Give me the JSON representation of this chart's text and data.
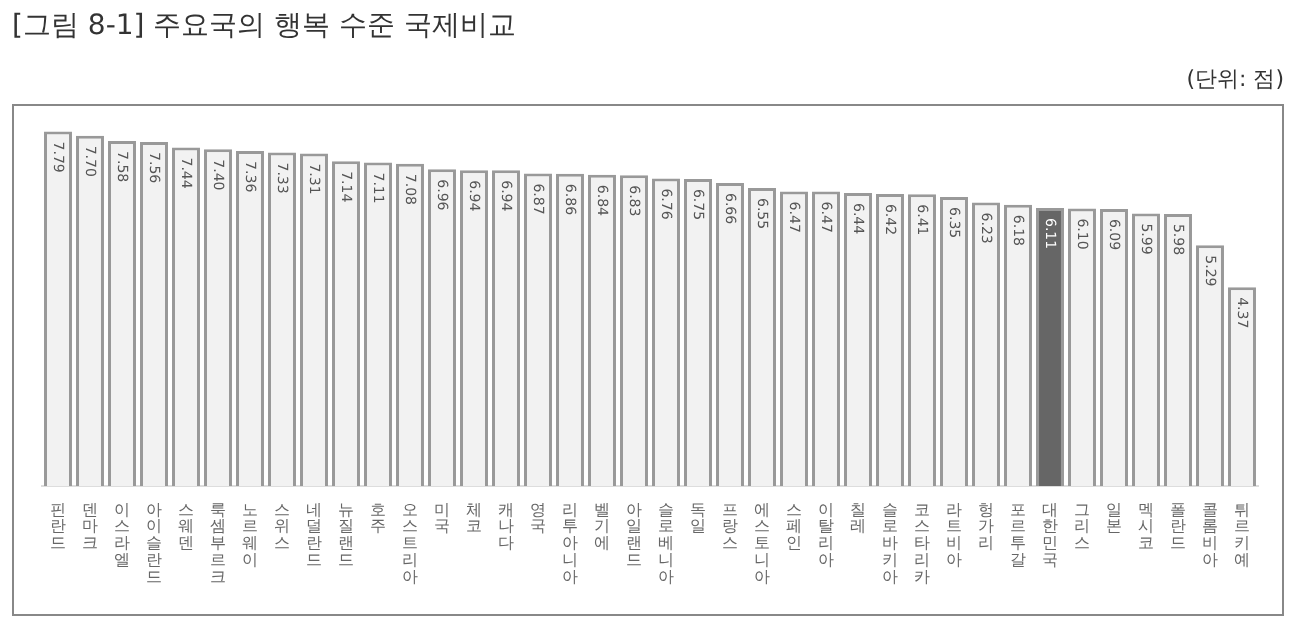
{
  "chart_data": {
    "type": "bar",
    "title": "[그림 8-1] 주요국의 행복 수준 국제비교",
    "annotations": [
      "(단위: 점)"
    ],
    "categories": [
      "핀란드",
      "덴마크",
      "이스라엘",
      "아이슬란드",
      "스웨덴",
      "룩셈부르크",
      "노르웨이",
      "스위스",
      "네덜란드",
      "뉴질랜드",
      "호주",
      "오스트리아",
      "미국",
      "체코",
      "캐나다",
      "영국",
      "리투아니아",
      "벨기에",
      "아일랜드",
      "슬로베니아",
      "독일",
      "프랑스",
      "에스토니아",
      "스페인",
      "이탈리아",
      "칠레",
      "슬로바키아",
      "코스타리카",
      "라트비아",
      "헝가리",
      "포르투갈",
      "대한민국",
      "그리스",
      "일본",
      "멕시코",
      "폴란드",
      "콜롬비아",
      "튀르키예"
    ],
    "values": [
      7.79,
      7.7,
      7.58,
      7.56,
      7.44,
      7.4,
      7.36,
      7.33,
      7.31,
      7.14,
      7.11,
      7.08,
      6.96,
      6.94,
      6.94,
      6.87,
      6.86,
      6.84,
      6.83,
      6.76,
      6.75,
      6.66,
      6.55,
      6.47,
      6.47,
      6.44,
      6.42,
      6.41,
      6.35,
      6.23,
      6.18,
      6.11,
      6.1,
      6.09,
      5.99,
      5.98,
      5.29,
      4.37
    ],
    "colors": [
      "#f2f2f2",
      "#f2f2f2",
      "#f2f2f2",
      "#f2f2f2",
      "#f2f2f2",
      "#f2f2f2",
      "#f2f2f2",
      "#f2f2f2",
      "#f2f2f2",
      "#f2f2f2",
      "#f2f2f2",
      "#f2f2f2",
      "#f2f2f2",
      "#f2f2f2",
      "#f2f2f2",
      "#f2f2f2",
      "#f2f2f2",
      "#f2f2f2",
      "#f2f2f2",
      "#f2f2f2",
      "#f2f2f2",
      "#f2f2f2",
      "#f2f2f2",
      "#f2f2f2",
      "#f2f2f2",
      "#f2f2f2",
      "#f2f2f2",
      "#f2f2f2",
      "#f2f2f2",
      "#f2f2f2",
      "#f2f2f2",
      "#666666",
      "#f2f2f2",
      "#f2f2f2",
      "#f2f2f2",
      "#f2f2f2",
      "#f2f2f2",
      "#f2f2f2"
    ],
    "value_labels": [
      "7.79",
      "7.70",
      "7.58",
      "7.56",
      "7.44",
      "7.40",
      "7.36",
      "7.33",
      "7.31",
      "7.14",
      "7.11",
      "7.08",
      "6.96",
      "6.94",
      "6.94",
      "6.87",
      "6.86",
      "6.84",
      "6.83",
      "6.76",
      "6.75",
      "6.66",
      "6.55",
      "6.47",
      "6.47",
      "6.44",
      "6.42",
      "6.41",
      "6.35",
      "6.23",
      "6.18",
      "6.11",
      "6.10",
      "6.09",
      "5.99",
      "5.98",
      "5.29",
      "4.37"
    ],
    "grid": false,
    "legend": false
  }
}
